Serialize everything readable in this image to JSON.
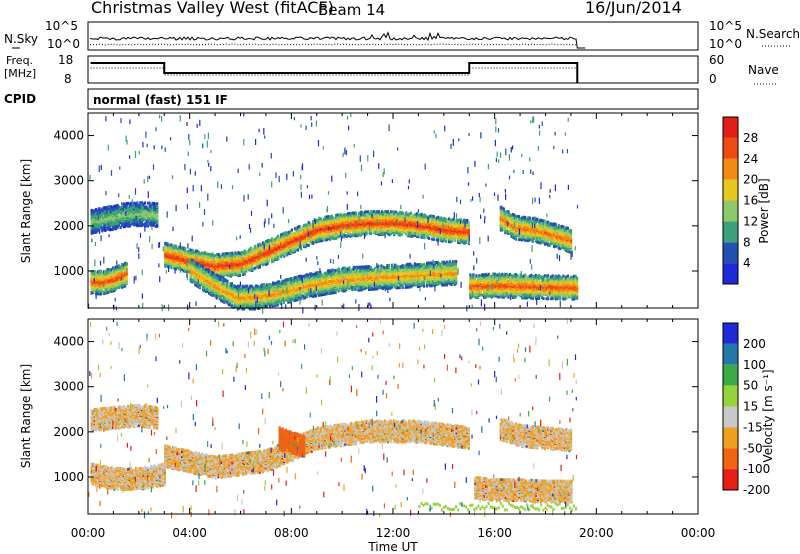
{
  "header": {
    "station": "Christmas Valley West (fitACF)",
    "beam": "Beam 14",
    "date": "16/Jun/2014"
  },
  "sky_panel": {
    "left_label": "N.Sky",
    "left_ticks": [
      "10^5",
      "10^0"
    ],
    "right_ticks": [
      "10^5",
      "10^0"
    ],
    "right_label": "N.Search"
  },
  "freq_panel": {
    "left_label_line1": "Freq.",
    "left_label_line2": "[MHz]",
    "left_ticks": [
      "18",
      "8"
    ],
    "right_ticks": [
      "60",
      "0"
    ],
    "right_label": "Nave"
  },
  "cpid": {
    "label": "CPID",
    "value": "normal (fast) 151 IF"
  },
  "chart_data": [
    {
      "type": "heatmap",
      "name": "power",
      "ylabel": "Slant Range [km]",
      "y_ticks": [
        1000,
        2000,
        3000,
        4000
      ],
      "x_ticks": [
        "00:00",
        "04:00",
        "08:00",
        "12:00",
        "16:00",
        "20:00",
        "00:00"
      ],
      "xlim_hours": [
        0,
        24
      ],
      "ylim_km": [
        180,
        4500
      ],
      "data_end_hour": 19.25,
      "colorbar_label": "Power [dB]",
      "colorbar_ticks": [
        4,
        8,
        12,
        16,
        20,
        24,
        28
      ],
      "colorbar_colors": [
        "#1e2ad8",
        "#2350b4",
        "#3aa278",
        "#8ec868",
        "#e8c81e",
        "#f28a14",
        "#ee4a14",
        "#e41e14"
      ],
      "bands": [
        {
          "x": [
            0.1,
            0.5,
            1.0,
            1.4,
            2.0,
            2.7
          ],
          "y": [
            2130,
            2180,
            2220,
            2280,
            2300,
            2280
          ],
          "level": 14
        },
        {
          "x": [
            0.1,
            0.5,
            1.0,
            1.5
          ],
          "y": [
            800,
            780,
            860,
            980
          ],
          "level": 26
        },
        {
          "x": [
            3.0,
            4.0,
            5.0,
            6.0,
            7.0,
            8.0,
            9.0,
            10.0,
            11.0,
            12.0,
            13.0,
            14.0,
            15.0
          ],
          "y": [
            1400,
            1250,
            1150,
            1200,
            1450,
            1700,
            1950,
            2050,
            2100,
            2100,
            2050,
            1950,
            1900
          ],
          "level": 28
        },
        {
          "x": [
            4.0,
            5.0,
            5.8,
            6.5,
            7.5,
            8.5,
            10.0,
            11.5,
            13.0,
            14.5
          ],
          "y": [
            1050,
            700,
            450,
            450,
            550,
            700,
            850,
            900,
            950,
            1000
          ],
          "level": 22
        },
        {
          "x": [
            15.0,
            16.0,
            17.0,
            18.0,
            19.2
          ],
          "y": [
            700,
            720,
            700,
            680,
            670
          ],
          "level": 26
        },
        {
          "x": [
            16.2,
            16.8,
            17.5,
            18.2,
            19.0
          ],
          "y": [
            2200,
            2000,
            1950,
            1850,
            1700
          ],
          "level": 24
        }
      ]
    },
    {
      "type": "heatmap",
      "name": "velocity",
      "ylabel": "Slant Range [km]",
      "y_ticks": [
        1000,
        2000,
        3000,
        4000
      ],
      "x_ticks": [
        "00:00",
        "04:00",
        "08:00",
        "12:00",
        "16:00",
        "20:00",
        "00:00"
      ],
      "xlabel": "Time UT",
      "xlim_hours": [
        0,
        24
      ],
      "ylim_km": [
        180,
        4500
      ],
      "colorbar_label": "Velocity [m s⁻¹]",
      "colorbar_ticks": [
        "200",
        "100",
        "50",
        "15",
        "-15",
        "-50",
        "-100",
        "-200"
      ],
      "colorbar_colors": [
        "#1e2ad8",
        "#2378aa",
        "#3caa46",
        "#96d23c",
        "#c8c8c8",
        "#f0a01e",
        "#f06414",
        "#e61e14"
      ],
      "bands": [
        {
          "x": [
            0.1,
            1.0,
            2.0,
            2.7
          ],
          "y": [
            2300,
            2350,
            2400,
            2350
          ],
          "vel": -15
        },
        {
          "x": [
            0.1,
            1.0,
            2.0,
            3.0
          ],
          "y": [
            1100,
            1000,
            1000,
            1100
          ],
          "vel": -15
        },
        {
          "x": [
            3.0,
            5.0,
            7.0,
            9.0,
            11.0,
            13.0,
            15.0
          ],
          "y": [
            1500,
            1250,
            1400,
            1900,
            2050,
            2050,
            1900
          ],
          "vel": -15
        },
        {
          "x": [
            7.5,
            8.0,
            8.5
          ],
          "y": [
            1900,
            1800,
            1700
          ],
          "vel": -60
        },
        {
          "x": [
            15.2,
            16.0,
            17.0,
            18.0,
            19.0
          ],
          "y": [
            800,
            750,
            750,
            720,
            720
          ],
          "vel": -15
        },
        {
          "x": [
            16.2,
            17.0,
            18.0,
            19.0
          ],
          "y": [
            2100,
            1950,
            1900,
            1850
          ],
          "vel": -15
        }
      ]
    }
  ]
}
